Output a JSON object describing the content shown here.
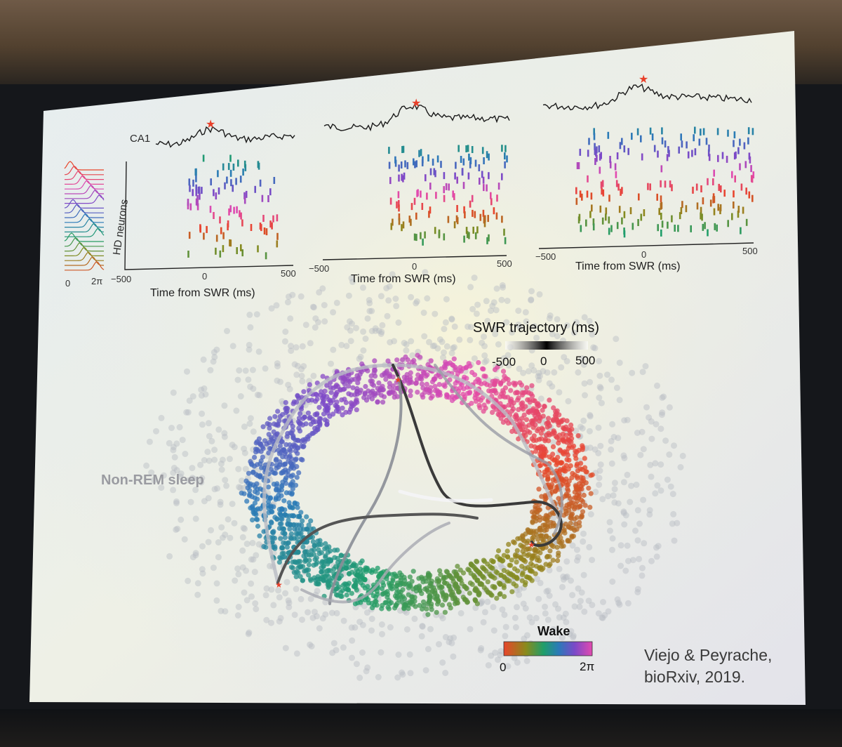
{
  "slide": {
    "panels": [
      {
        "lfp_label": "CA1",
        "y_axis_label": "HD neurons",
        "x_ticks": [
          "−500",
          "0",
          "500"
        ],
        "x_axis_label": "Time from SWR (ms)",
        "tuning_ticks": [
          "0",
          "2π"
        ]
      },
      {
        "x_ticks": [
          "−500",
          "0",
          "500"
        ],
        "x_axis_label": "Time from SWR (ms)"
      },
      {
        "x_ticks": [
          "−500",
          "0",
          "500"
        ],
        "x_axis_label": "Time from SWR (ms)"
      }
    ],
    "embedding": {
      "label": "Non-REM sleep",
      "swr_colorbar": {
        "title": "SWR trajectory (ms)",
        "ticks": [
          "-500",
          "0",
          "500"
        ]
      },
      "wake_colorbar": {
        "title": "Wake",
        "ticks": [
          "0",
          "2π"
        ]
      }
    },
    "citation": {
      "line1": "Viejo & Peyrache,",
      "line2": "bioRxiv, 2019."
    }
  },
  "colors": {
    "slide_background": "#e8eef0",
    "lfp_trace": "#1a1a1a",
    "swr_marker": "#e8402a",
    "trajectory": "#2a2a2a"
  }
}
